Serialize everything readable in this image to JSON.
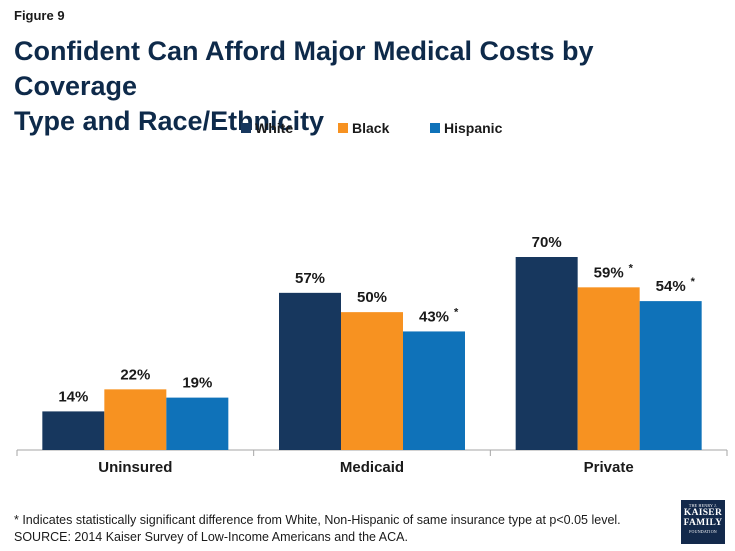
{
  "figure_label": "Figure 9",
  "title": {
    "line1": "Confident Can Afford Major Medical Costs by Coverage",
    "line2": "Type and Race/Ethnicity"
  },
  "colors": {
    "white_series": "#17375e",
    "black_series": "#f79221",
    "hispanic_series": "#0f72b9"
  },
  "chart_data": {
    "type": "bar",
    "title": "Confident Can Afford Major Medical Costs by Coverage Type and Race/Ethnicity",
    "categories": [
      "Uninsured",
      "Medicaid",
      "Private"
    ],
    "series": [
      {
        "name": "White",
        "values": [
          14,
          57,
          70
        ],
        "labels": [
          "14%",
          "57%",
          "70%"
        ],
        "significant": [
          false,
          false,
          false
        ]
      },
      {
        "name": "Black",
        "values": [
          22,
          50,
          59
        ],
        "labels": [
          "22%",
          "50%",
          "59%"
        ],
        "significant": [
          false,
          false,
          true
        ]
      },
      {
        "name": "Hispanic",
        "values": [
          19,
          43,
          54
        ],
        "labels": [
          "19%",
          "43%",
          "54%"
        ],
        "significant": [
          false,
          true,
          true
        ]
      }
    ],
    "significance_marker": "*",
    "xlabel": "",
    "ylabel": "",
    "ylim": [
      0,
      85
    ],
    "grid": false,
    "legend_position": "top-center"
  },
  "footnote": {
    "line1": "* Indicates statistically significant difference from White, Non-Hispanic of same insurance type at p<0.05 level.",
    "line2": "SOURCE: 2014 Kaiser Survey of Low-Income Americans and the ACA."
  },
  "logo": {
    "line1": "THE HENRY J.",
    "line2": "KAISER",
    "line3": "FAMILY",
    "line4": "FOUNDATION"
  }
}
